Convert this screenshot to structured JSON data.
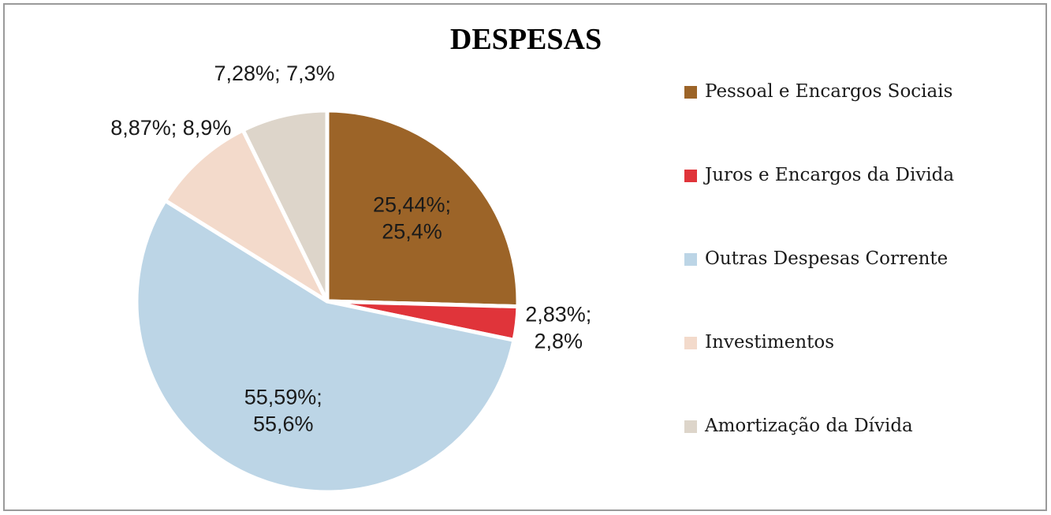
{
  "chart_data": {
    "type": "pie",
    "title": "DESPESAS",
    "categories": [
      "Pessoal e Encargos Sociais",
      "Juros e Encargos da Divida",
      "Outras Despesas Corrente",
      "Investimentos",
      "Amortização da Dívida"
    ],
    "values": [
      25.44,
      2.83,
      55.59,
      8.87,
      7.28
    ],
    "value_labels": [
      "25,44%; 25,4%",
      "2,83%; 2,8%",
      "55,59%; 55,6%",
      "8,87%; 8,9%",
      "7,28%; 7,3%"
    ],
    "colors": [
      "#9c6428",
      "#e0343a",
      "#bcd5e6",
      "#f3dacb",
      "#ddd5ca"
    ],
    "legend": "right"
  }
}
